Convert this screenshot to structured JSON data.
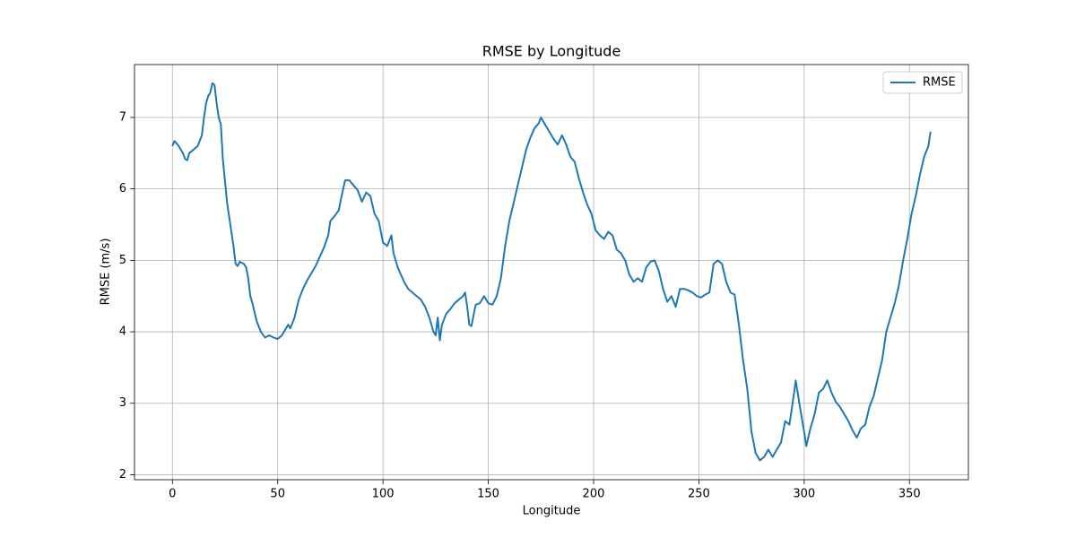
{
  "chart_data": {
    "type": "line",
    "title": "RMSE by Longitude",
    "xlabel": "Longitude",
    "ylabel": "RMSE (m/s)",
    "x": [
      0,
      1,
      3,
      5,
      6,
      7,
      8,
      10,
      12,
      14,
      15,
      16,
      17,
      18,
      19,
      20,
      21,
      22,
      23,
      24,
      25,
      26,
      27,
      28,
      29,
      30,
      31,
      32,
      34,
      35,
      36,
      37,
      38,
      40,
      42,
      44,
      46,
      48,
      50,
      52,
      54,
      55,
      56,
      58,
      60,
      62,
      64,
      66,
      68,
      70,
      72,
      74,
      75,
      77,
      79,
      80,
      82,
      84,
      86,
      88,
      90,
      92,
      94,
      96,
      98,
      100,
      102,
      104,
      105,
      107,
      110,
      112,
      114,
      116,
      118,
      120,
      122,
      124,
      125,
      126,
      127,
      128,
      130,
      132,
      134,
      136,
      138,
      139,
      140,
      141,
      142,
      144,
      146,
      148,
      150,
      152,
      154,
      156,
      158,
      160,
      162,
      164,
      166,
      168,
      170,
      172,
      174,
      175,
      177,
      179,
      181,
      183,
      185,
      187,
      189,
      191,
      193,
      195,
      197,
      199,
      201,
      203,
      205,
      207,
      209,
      211,
      213,
      215,
      217,
      219,
      221,
      223,
      225,
      227,
      229,
      231,
      233,
      235,
      237,
      239,
      241,
      243,
      245,
      247,
      249,
      251,
      253,
      255,
      257,
      259,
      261,
      263,
      265,
      267,
      269,
      271,
      273,
      275,
      277,
      279,
      281,
      283,
      285,
      287,
      289,
      291,
      293,
      295,
      296,
      298,
      300,
      301,
      303,
      305,
      307,
      309,
      311,
      313,
      315,
      317,
      319,
      321,
      323,
      325,
      327,
      329,
      331,
      333,
      335,
      337,
      339,
      341,
      343,
      345,
      347,
      349,
      351,
      353,
      355,
      357,
      359,
      360
    ],
    "series": [
      {
        "name": "RMSE",
        "color": "#1f77b4",
        "values": [
          6.6,
          6.67,
          6.6,
          6.5,
          6.42,
          6.4,
          6.5,
          6.55,
          6.6,
          6.75,
          7.0,
          7.2,
          7.3,
          7.35,
          7.48,
          7.45,
          7.2,
          7.0,
          6.9,
          6.4,
          6.1,
          5.8,
          5.6,
          5.4,
          5.2,
          4.95,
          4.92,
          4.98,
          4.95,
          4.9,
          4.75,
          4.5,
          4.4,
          4.15,
          4.0,
          3.92,
          3.95,
          3.92,
          3.9,
          3.95,
          4.05,
          4.1,
          4.05,
          4.2,
          4.45,
          4.6,
          4.72,
          4.82,
          4.92,
          5.05,
          5.18,
          5.35,
          5.55,
          5.62,
          5.7,
          5.85,
          6.12,
          6.12,
          6.05,
          5.98,
          5.82,
          5.95,
          5.9,
          5.65,
          5.55,
          5.25,
          5.2,
          5.35,
          5.1,
          4.9,
          4.7,
          4.6,
          4.55,
          4.5,
          4.45,
          4.35,
          4.2,
          4.0,
          3.95,
          4.2,
          3.88,
          4.1,
          4.25,
          4.32,
          4.4,
          4.45,
          4.5,
          4.55,
          4.35,
          4.1,
          4.08,
          4.38,
          4.4,
          4.5,
          4.4,
          4.38,
          4.5,
          4.75,
          5.2,
          5.55,
          5.8,
          6.05,
          6.3,
          6.55,
          6.72,
          6.85,
          6.92,
          7.0,
          6.9,
          6.8,
          6.7,
          6.62,
          6.75,
          6.62,
          6.45,
          6.38,
          6.15,
          5.95,
          5.78,
          5.65,
          5.42,
          5.35,
          5.3,
          5.4,
          5.35,
          5.15,
          5.1,
          5.0,
          4.8,
          4.7,
          4.75,
          4.7,
          4.9,
          4.98,
          5.0,
          4.85,
          4.6,
          4.42,
          4.5,
          4.35,
          4.6,
          4.6,
          4.58,
          4.55,
          4.5,
          4.48,
          4.52,
          4.55,
          4.95,
          5.0,
          4.95,
          4.7,
          4.55,
          4.52,
          4.1,
          3.6,
          3.2,
          2.6,
          2.3,
          2.2,
          2.25,
          2.35,
          2.25,
          2.35,
          2.45,
          2.75,
          2.7,
          3.1,
          3.32,
          2.95,
          2.6,
          2.4,
          2.65,
          2.85,
          3.15,
          3.2,
          3.32,
          3.15,
          3.02,
          2.95,
          2.85,
          2.75,
          2.62,
          2.52,
          2.65,
          2.7,
          2.95,
          3.1,
          3.35,
          3.6,
          4.0,
          4.2,
          4.4,
          4.65,
          5.0,
          5.3,
          5.65,
          5.9,
          6.2,
          6.45,
          6.6,
          6.8
        ]
      }
    ],
    "xlim": [
      -18,
      378
    ],
    "xticks": [
      0,
      50,
      100,
      150,
      200,
      250,
      300,
      350
    ],
    "ylim": [
      1.93,
      7.74
    ],
    "yticks": [
      2,
      3,
      4,
      5,
      6,
      7
    ],
    "grid": true,
    "legend": "upper right"
  }
}
